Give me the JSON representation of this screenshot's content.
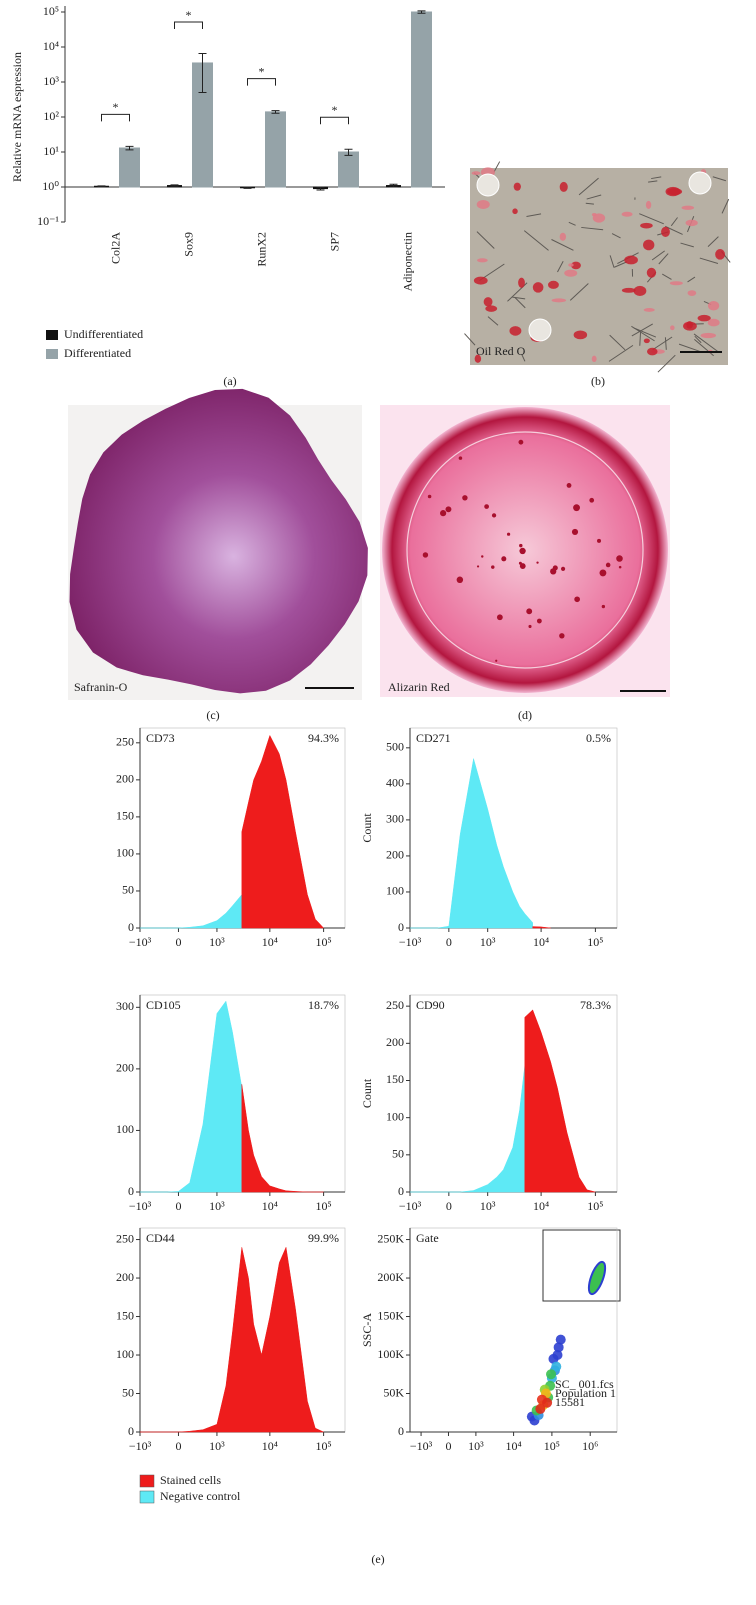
{
  "chart_data": [
    {
      "type": "bar",
      "ylabel": "Relative mRNA espression",
      "yscale": "log",
      "ylim": [
        0.1,
        100000
      ],
      "yticks": [
        {
          "value": 0.1,
          "label": "10⁻¹"
        },
        {
          "value": 1,
          "label": "10⁰"
        },
        {
          "value": 10,
          "label": "10¹"
        },
        {
          "value": 100,
          "label": "10²"
        },
        {
          "value": 1000,
          "label": "10³"
        },
        {
          "value": 10000,
          "label": "10⁴"
        },
        {
          "value": 100000,
          "label": "10⁵"
        }
      ],
      "categories": [
        "Col2A",
        "Sox9",
        "RunX2",
        "SP7",
        "Adiponectin"
      ],
      "series": [
        {
          "name": "Undifferentiated",
          "color": "#111111",
          "values": [
            1.05,
            1.1,
            0.95,
            0.9,
            1.1
          ],
          "errors": [
            0.03,
            0.05,
            0.04,
            0.08,
            0.1
          ]
        },
        {
          "name": "Differentiated",
          "color": "#95a3a8",
          "values": [
            13,
            3500,
            140,
            10,
            100000
          ],
          "errors": [
            1.5,
            3000,
            12,
            2,
            8000
          ]
        }
      ],
      "significance": [
        "*",
        "*",
        "*",
        "*",
        null
      ],
      "caption": "(a)"
    },
    {
      "type": "area",
      "title": "CD73",
      "annotation": "94.3%",
      "xscale": "logicle",
      "xlim": [
        -1000,
        250000
      ],
      "xticks": [
        {
          "value": -1000,
          "label": "−10³"
        },
        0,
        {
          "value": 1000,
          "label": "10³"
        },
        {
          "value": 10000,
          "label": "10⁴"
        },
        {
          "value": 100000,
          "label": "10⁵"
        }
      ],
      "ylim": [
        0,
        270
      ],
      "yticks": [
        0,
        50,
        100,
        150,
        200,
        250
      ],
      "x": [
        -1000,
        -200,
        0,
        200,
        500,
        1000,
        1500,
        2000,
        3000,
        4000,
        5000,
        7000,
        10000,
        15000,
        20000,
        30000,
        50000,
        70000,
        100000
      ],
      "series": [
        {
          "name": "Negative control",
          "color": "#5ee9f5",
          "values": [
            0,
            0,
            0,
            1,
            3,
            10,
            20,
            30,
            45,
            null,
            null,
            null,
            null,
            null,
            null,
            null,
            null,
            null,
            null
          ]
        },
        {
          "name": "Stained cells",
          "color": "#ee1c1c",
          "values": [
            null,
            null,
            null,
            null,
            null,
            null,
            null,
            null,
            130,
            170,
            200,
            225,
            260,
            235,
            200,
            130,
            45,
            12,
            0
          ]
        }
      ]
    },
    {
      "type": "area",
      "title": "CD271",
      "annotation": "0.5%",
      "ylabel": "Count",
      "xscale": "logicle",
      "xlim": [
        -1000,
        250000
      ],
      "xticks": [
        {
          "value": -1000,
          "label": "−10³"
        },
        0,
        {
          "value": 1000,
          "label": "10³"
        },
        {
          "value": 10000,
          "label": "10⁴"
        },
        {
          "value": 100000,
          "label": "10⁵"
        }
      ],
      "ylim": [
        0,
        555
      ],
      "yticks": [
        0,
        100,
        200,
        300,
        400,
        500
      ],
      "x": [
        -1000,
        -200,
        0,
        200,
        500,
        1000,
        1500,
        2000,
        3000,
        4000,
        5000,
        7000,
        10000,
        15000,
        20000,
        30000,
        50000,
        70000,
        100000
      ],
      "series": [
        {
          "name": "Negative control",
          "color": "#5ee9f5",
          "values": [
            0,
            0,
            5,
            260,
            470,
            330,
            230,
            170,
            100,
            60,
            40,
            15,
            null,
            null,
            null,
            null,
            null,
            null,
            null
          ]
        },
        {
          "name": "Stained cells",
          "color": "#ee1c1c",
          "values": [
            null,
            null,
            null,
            null,
            null,
            null,
            null,
            null,
            null,
            null,
            null,
            4,
            3,
            0,
            null,
            null,
            null,
            null,
            null
          ]
        }
      ]
    },
    {
      "type": "area",
      "title": "CD105",
      "annotation": "18.7%",
      "xscale": "logicle",
      "xlim": [
        -1000,
        250000
      ],
      "xticks": [
        {
          "value": -1000,
          "label": "−10³"
        },
        0,
        {
          "value": 1000,
          "label": "10³"
        },
        {
          "value": 10000,
          "label": "10⁴"
        },
        {
          "value": 100000,
          "label": "10⁵"
        }
      ],
      "ylim": [
        0,
        320
      ],
      "yticks": [
        0,
        100,
        200,
        300
      ],
      "x": [
        -1000,
        -200,
        0,
        200,
        500,
        1000,
        1500,
        2000,
        3000,
        4000,
        5000,
        7000,
        10000,
        15000,
        20000,
        30000,
        50000,
        70000,
        100000
      ],
      "series": [
        {
          "name": "Negative control",
          "color": "#5ee9f5",
          "values": [
            0,
            0,
            1,
            15,
            110,
            290,
            310,
            260,
            170,
            null,
            null,
            null,
            null,
            null,
            null,
            null,
            null,
            null,
            null
          ]
        },
        {
          "name": "Stained cells",
          "color": "#ee1c1c",
          "values": [
            null,
            null,
            null,
            null,
            null,
            null,
            null,
            null,
            175,
            100,
            60,
            25,
            10,
            5,
            2,
            1,
            0,
            0,
            0
          ]
        }
      ]
    },
    {
      "type": "area",
      "title": "CD90",
      "annotation": "78.3%",
      "ylabel": "Count",
      "xscale": "logicle",
      "xlim": [
        -1000,
        250000
      ],
      "xticks": [
        {
          "value": -1000,
          "label": "−10³"
        },
        0,
        {
          "value": 1000,
          "label": "10³"
        },
        {
          "value": 10000,
          "label": "10⁴"
        },
        {
          "value": 100000,
          "label": "10⁵"
        }
      ],
      "ylim": [
        0,
        265
      ],
      "yticks": [
        0,
        50,
        100,
        150,
        200,
        250
      ],
      "x": [
        -1000,
        -200,
        0,
        200,
        500,
        1000,
        1500,
        2000,
        3000,
        4000,
        5000,
        7000,
        10000,
        15000,
        20000,
        30000,
        50000,
        70000,
        100000
      ],
      "series": [
        {
          "name": "Negative control",
          "color": "#5ee9f5",
          "values": [
            0,
            0,
            0,
            0,
            2,
            10,
            20,
            30,
            60,
            110,
            170,
            null,
            null,
            null,
            null,
            null,
            null,
            null,
            null
          ]
        },
        {
          "name": "Stained cells",
          "color": "#ee1c1c",
          "values": [
            null,
            null,
            null,
            null,
            null,
            null,
            null,
            null,
            null,
            null,
            235,
            245,
            215,
            175,
            140,
            80,
            20,
            3,
            0
          ]
        }
      ]
    },
    {
      "type": "area",
      "title": "CD44",
      "annotation": "99.9%",
      "xscale": "logicle",
      "xlim": [
        -1000,
        250000
      ],
      "xticks": [
        {
          "value": -1000,
          "label": "−10³"
        },
        0,
        {
          "value": 1000,
          "label": "10³"
        },
        {
          "value": 10000,
          "label": "10⁴"
        },
        {
          "value": 100000,
          "label": "10⁵"
        }
      ],
      "ylim": [
        0,
        265
      ],
      "yticks": [
        0,
        50,
        100,
        150,
        200,
        250
      ],
      "x": [
        -1000,
        -200,
        0,
        200,
        500,
        1000,
        1500,
        2000,
        3000,
        4000,
        5000,
        7000,
        10000,
        15000,
        20000,
        30000,
        50000,
        70000,
        100000
      ],
      "series": [
        {
          "name": "Stained cells",
          "color": "#ee1c1c",
          "values": [
            0,
            0,
            0,
            1,
            3,
            10,
            60,
            130,
            240,
            200,
            140,
            100,
            150,
            220,
            240,
            160,
            40,
            5,
            0
          ]
        }
      ]
    },
    {
      "type": "scatter",
      "title": "Gate",
      "ylabel": "SSC-A",
      "xscale": "logicle",
      "xlim": [
        -2000,
        5000000
      ],
      "xticks": [
        {
          "value": -1000,
          "label": "−10³"
        },
        0,
        {
          "value": 1000,
          "label": "10³"
        },
        {
          "value": 10000,
          "label": "10⁴"
        },
        {
          "value": 100000,
          "label": "10⁵"
        },
        {
          "value": 1000000,
          "label": "10⁶"
        }
      ],
      "ylim": [
        0,
        265000
      ],
      "yticks": [
        0,
        {
          "value": 50000,
          "label": "50K"
        },
        {
          "value": 100000,
          "label": "100K"
        },
        {
          "value": 150000,
          "label": "150K"
        },
        {
          "value": 200000,
          "label": "200K"
        },
        {
          "value": 250000,
          "label": "250K"
        }
      ],
      "annotations": [
        "SC_ 001.fcs",
        "Population 1",
        "15581"
      ],
      "series": [
        {
          "x": [
            30000,
            35000,
            45000,
            110000,
            140000,
            150000,
            170000,
            120000,
            100000,
            130000,
            40000,
            80000,
            90000,
            95000,
            65000,
            70000,
            60000,
            50000,
            55000,
            75000
          ],
          "values": [
            20000,
            15000,
            22000,
            95000,
            100000,
            110000,
            120000,
            80000,
            70000,
            85000,
            28000,
            45000,
            60000,
            75000,
            55000,
            50000,
            35000,
            30000,
            42000,
            38000
          ],
          "colors": [
            "#2c3fd0",
            "#2c3fd0",
            "#2f8fe0",
            "#2c3fd0",
            "#2c3fd0",
            "#2c3fd0",
            "#2c3fd0",
            "#2f8fe0",
            "#2fb0e0",
            "#2fb0e0",
            "#3cc050",
            "#3cc050",
            "#3cc050",
            "#3cc050",
            "#8fd030",
            "#f4b21a",
            "#f0d020",
            "#e02a1a",
            "#e8321c",
            "#e02a1a"
          ]
        }
      ]
    }
  ],
  "images": [
    {
      "label": "Oil Red O",
      "caption": "(b)"
    },
    {
      "label": "Safranin-O",
      "caption": "(c)"
    },
    {
      "label": "Alizarin Red",
      "caption": "(d)"
    }
  ],
  "panel_e_caption": "(e)"
}
